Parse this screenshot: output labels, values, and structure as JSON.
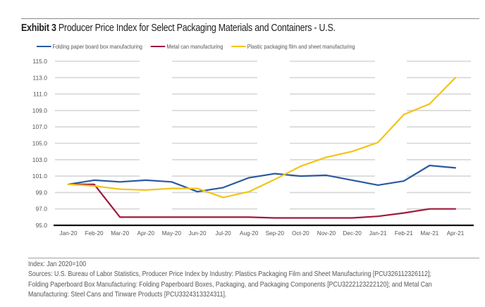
{
  "header": {
    "exhibit_label": "Exhibit 3",
    "title_text": "Producer Price Index for Select Packaging Materials and Containers - U.S."
  },
  "chart_data": {
    "type": "line",
    "title": "Exhibit 3 Producer Price Index for Select Packaging Materials and Containers - U.S.",
    "xlabel": "",
    "ylabel": "",
    "ylim": [
      95.0,
      115.0
    ],
    "yticks": [
      "95.0",
      "97.0",
      "99.0",
      "101.0",
      "103.0",
      "105.0",
      "107.0",
      "109.0",
      "111.0",
      "113.0",
      "115.0"
    ],
    "ytick_values": [
      95,
      97,
      99,
      101,
      103,
      105,
      107,
      109,
      111,
      113,
      115
    ],
    "grid": true,
    "legend_position": "top-left",
    "x": [
      "Jan-20",
      "Feb-20",
      "Mar-20",
      "Apr-20",
      "May-20",
      "Jun-20",
      "Jul-20",
      "Aug-20",
      "Sep-20",
      "Oct-20",
      "Nov-20",
      "Dec-20",
      "Jan-21",
      "Feb-21",
      "Mar-21",
      "Apr-21"
    ],
    "series": [
      {
        "name": "Folding paper board box manufacturing",
        "color": "#2a5aa0",
        "values": [
          100.0,
          100.5,
          100.3,
          100.5,
          100.3,
          99.1,
          99.6,
          100.8,
          101.3,
          101.0,
          101.1,
          100.5,
          99.9,
          100.4,
          102.3,
          102.0
        ]
      },
      {
        "name": "Metal can manufacturing",
        "color": "#9e1a3c",
        "values": [
          100.0,
          100.0,
          96.0,
          96.0,
          96.0,
          96.0,
          96.0,
          96.0,
          95.9,
          95.9,
          95.9,
          95.9,
          96.1,
          96.5,
          97.0,
          97.0
        ]
      },
      {
        "name": "Plastic packaging film and sheet manufacturing",
        "color": "#f2c419",
        "values": [
          100.0,
          99.8,
          99.4,
          99.3,
          99.5,
          99.5,
          98.4,
          99.1,
          100.6,
          102.2,
          103.3,
          104.0,
          105.1,
          108.5,
          109.8,
          113.0
        ]
      }
    ]
  },
  "footer": {
    "index_note": "Index: Jan 2020=100",
    "sources_lines": [
      "Sources: U.S. Bureau of Labor Statistics, Producer Price Index by Industry: Plastics Packaging Film and Sheet Manufacturing [PCU326112326112];",
      "Folding Paperboard Box Manufacturing: Folding Paperboard Boxes, Packaging, and Packaging Components [PCU3222123222120]; and Metal Can",
      "Manufacturing: Steel Cans and Tinware Products [PCU3324313324311]."
    ]
  }
}
